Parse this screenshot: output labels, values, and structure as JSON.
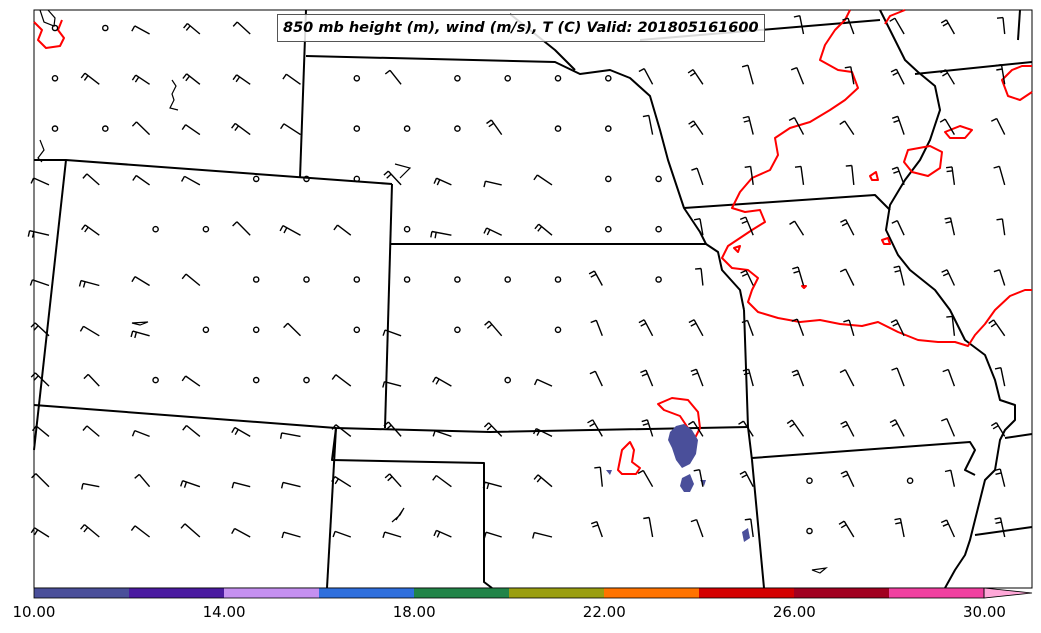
{
  "title": "850 mb height (m), wind (m/s), T (C) Valid: 201805161600",
  "colorbar": {
    "tick_labels": [
      "10.00",
      "14.00",
      "18.00",
      "22.00",
      "26.00",
      "30.00"
    ],
    "min": 10,
    "max": 31,
    "bin_colors": [
      "#4a4f9a",
      "#4a1aa0",
      "#c590f0",
      "#2f6fdd",
      "#218448",
      "#9a9e10",
      "#ff7300",
      "#d40000",
      "#a10020",
      "#f040a0",
      "#ffa8d8"
    ]
  },
  "colors": {
    "borders": "#000000",
    "temperature_contour": "#ff0000",
    "shaded_field": "#4a4f9a",
    "station_marker": "#000000"
  }
}
